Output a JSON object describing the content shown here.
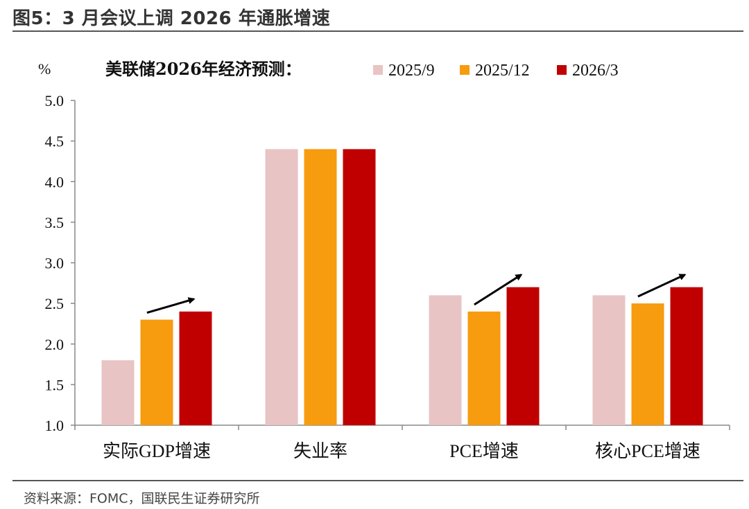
{
  "header": {
    "figure_title": "图5：3 月会议上调 2026 年通胀增速"
  },
  "footer": {
    "source": "资料来源：FOMC，国联民生证券研究所"
  },
  "chart_data": {
    "type": "bar",
    "title": "美联储2026年经济预测：",
    "ylabel": "%",
    "ylim": [
      1.0,
      5.0
    ],
    "yticks": [
      1.0,
      1.5,
      2.0,
      2.5,
      3.0,
      3.5,
      4.0,
      4.5,
      5.0
    ],
    "ytick_labels": [
      "1.0",
      "1.5",
      "2.0",
      "2.5",
      "3.0",
      "3.5",
      "4.0",
      "4.5",
      "5.0"
    ],
    "categories": [
      "实际GDP增速",
      "失业率",
      "PCE增速",
      "核心PCE增速"
    ],
    "series": [
      {
        "name": "2025/9",
        "color": "#E8C4C4",
        "values": [
          1.8,
          4.4,
          2.6,
          2.6
        ]
      },
      {
        "name": "2025/12",
        "color": "#F79B0F",
        "values": [
          2.3,
          4.4,
          2.4,
          2.5
        ]
      },
      {
        "name": "2026/3",
        "color": "#C00000",
        "values": [
          2.4,
          4.4,
          2.7,
          2.7
        ]
      }
    ],
    "legend_position": "top",
    "annotations": [
      {
        "type": "arrow",
        "category": "实际GDP增速",
        "meaning": "upward revision"
      },
      {
        "type": "arrow",
        "category": "PCE增速",
        "meaning": "upward revision"
      },
      {
        "type": "arrow",
        "category": "核心PCE增速",
        "meaning": "upward revision"
      }
    ]
  }
}
